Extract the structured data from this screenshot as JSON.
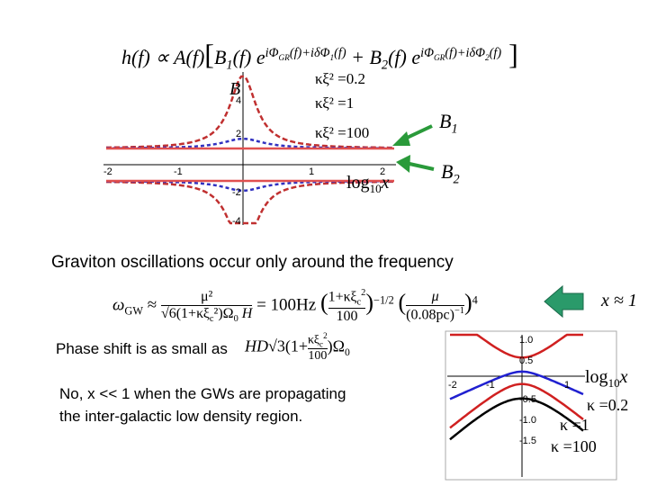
{
  "formula_top": {
    "lhs": "h(f) ∝ A(f)",
    "b1": "B",
    "b1_sub": "1",
    "f1": "(f) e",
    "exp1": "iΦ",
    "exp1_sub": "GR",
    "exp1_rest": "(f)+iδΦ",
    "exp1_sub2": "1",
    "exp1_end": "(f)",
    "plus": "+ B",
    "b2_sub": "2",
    "f2": "(f) e",
    "exp2": "iΦ",
    "exp2_sub": "GR",
    "exp2_rest": "(f)+iδΦ",
    "exp2_sub2": "2",
    "exp2_end": "(f)"
  },
  "left_plot": {
    "y_label": "B",
    "yticks": [
      "4",
      "2",
      "-2",
      "-4"
    ],
    "xticks": [
      "-2",
      "-1",
      "1",
      "2"
    ],
    "legend": [
      "κξ² =0.2",
      "κξ² =1",
      "κξ² =100"
    ],
    "x_label": "log",
    "x_label_sub": "10",
    "x_label_var": "x",
    "b1": "B",
    "b1_sub": "1",
    "b2": "B",
    "b2_sub": "2"
  },
  "line1": "Graviton oscillations occur only  around  the frequency",
  "formula_omega": {
    "lhs": "ω",
    "lhs_sub": "GW",
    "approx": "≈",
    "num": "μ²",
    "den": "√6(1+κξ",
    "den_sub": "c",
    "den_rest": "²)Ω",
    "den_sub2": "0",
    "den_h": " H",
    "eq": "= 100Hz",
    "bnum": "1+κξ",
    "bnum_sub": "c",
    "bnum_sup": "2",
    "bden": "100",
    "bexp": "−1/2",
    "mu": "μ",
    "pc": "(0.08pc)",
    "pc_exp": "−1",
    "exp4": "4"
  },
  "x_approx": "x ≈ 1",
  "line2": "Phase shift is as small as",
  "formula_phase": {
    "pre": "HD",
    "root": "√3(1+",
    "frac_num": "κξ",
    "frac_num_sub": "c",
    "frac_num_sup": "2",
    "frac_den": "100",
    "post": ")Ω",
    "post_sub": "0"
  },
  "line3a": "No, x << 1 when the GWs are propagating",
  "line3b": "the inter-galactic low density region.",
  "right_plot": {
    "yticks": [
      "1.0",
      "0.5",
      "-0.5",
      "-1.0",
      "-1.5"
    ],
    "xticks": [
      "-2",
      "-1",
      "1"
    ],
    "x_label": "log",
    "x_label_sub": "10",
    "x_label_var": "x",
    "legend": [
      "κ =0.2",
      "κ =1",
      "κ =100"
    ]
  }
}
